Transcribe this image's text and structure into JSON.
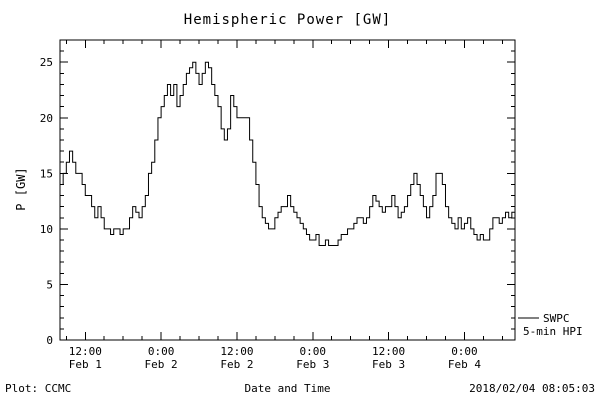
{
  "title": "Hemispheric Power [GW]",
  "footer": {
    "left": "Plot: CCMC",
    "right": "2018/02/04 08:05:03"
  },
  "legend": {
    "line1": "SWPC",
    "line2": "5-min HPI"
  },
  "chart_data": {
    "type": "line",
    "title": "Hemispheric Power [GW]",
    "xlabel": "Date and Time",
    "ylabel": "P [GW]",
    "ylim": [
      0,
      27
    ],
    "xlim_hours": [
      8,
      80
    ],
    "grid": false,
    "legend_position": "right-outside",
    "line_color": "#000000",
    "y_ticks": [
      0,
      5,
      10,
      15,
      20,
      25
    ],
    "x_ticks": [
      {
        "hours": 12,
        "time": "12:00",
        "date": "Feb 1"
      },
      {
        "hours": 24,
        "time": "0:00",
        "date": "Feb 2"
      },
      {
        "hours": 36,
        "time": "12:00",
        "date": "Feb 2"
      },
      {
        "hours": 48,
        "time": "0:00",
        "date": "Feb 3"
      },
      {
        "hours": 60,
        "time": "12:00",
        "date": "Feb 3"
      },
      {
        "hours": 72,
        "time": "0:00",
        "date": "Feb 4"
      }
    ],
    "series": [
      {
        "name": "SWPC 5-min HPI",
        "x_hours_start": 8,
        "x_hours_step": 0.5,
        "y": [
          14,
          15,
          16,
          17,
          16,
          15,
          15,
          14,
          13,
          13,
          12,
          11,
          12,
          11,
          10,
          10,
          9.5,
          10,
          10,
          9.5,
          10,
          10,
          11,
          12,
          11.5,
          11,
          12,
          13,
          15,
          16,
          18,
          20,
          21,
          22,
          23,
          22,
          23,
          21,
          22,
          23,
          24,
          24.5,
          25,
          24,
          23,
          24,
          25,
          24.5,
          23,
          22,
          21,
          19,
          18,
          19,
          22,
          21,
          20,
          20,
          20,
          20,
          18,
          16,
          14,
          12,
          11,
          10.5,
          10,
          10,
          11,
          11.5,
          12,
          12,
          13,
          12,
          11.5,
          11,
          10.5,
          10,
          9.5,
          9,
          9,
          9.5,
          8.5,
          8.5,
          9,
          8.5,
          8.5,
          8.5,
          9,
          9.5,
          9.5,
          10,
          10,
          10.5,
          11,
          11,
          10.5,
          11,
          12,
          13,
          12.5,
          12,
          11.5,
          12,
          12,
          13,
          12,
          11,
          11.5,
          12,
          13,
          14,
          15,
          14,
          13,
          12,
          11,
          12,
          13,
          15,
          15,
          14,
          12,
          11,
          10.5,
          10,
          11,
          10,
          10.5,
          11,
          10,
          9.5,
          9,
          9.5,
          9,
          9,
          10,
          11,
          11,
          10.5,
          11,
          11.5,
          11,
          11.5,
          11
        ]
      }
    ]
  }
}
